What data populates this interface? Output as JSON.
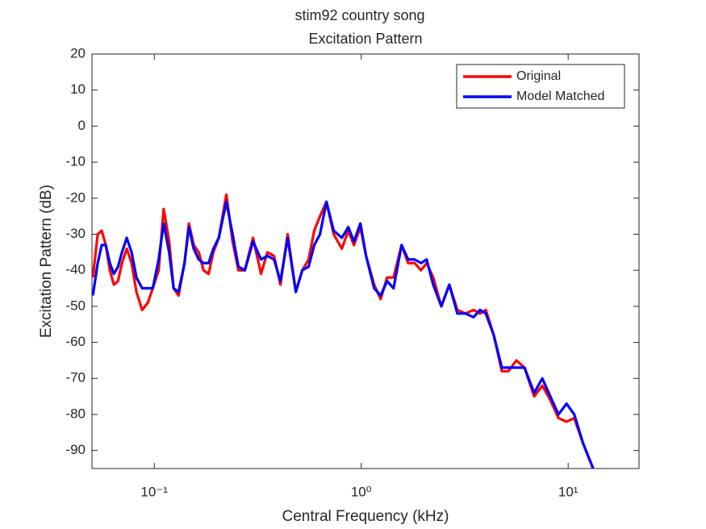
{
  "chart_data": {
    "type": "line",
    "title": "stim92 country song",
    "subtitle": "Excitation Pattern",
    "x_label": "Central Frequency (kHz)",
    "y_label": "Excitation Pattern (dB)",
    "log_x": true,
    "xlim": [
      0.05,
      22
    ],
    "ylim": [
      -95,
      20
    ],
    "xticks": [
      {
        "value": 0.1,
        "label": "10⁻¹"
      },
      {
        "value": 1,
        "label": "10⁰"
      },
      {
        "value": 10,
        "label": "10¹"
      }
    ],
    "yticks": [
      20,
      10,
      0,
      -10,
      -20,
      -30,
      -40,
      -50,
      -60,
      -70,
      -80,
      -90
    ],
    "legend": "upper right",
    "x": [
      0.0505,
      0.0533,
      0.0557,
      0.0583,
      0.061,
      0.0638,
      0.0668,
      0.0698,
      0.0736,
      0.0777,
      0.082,
      0.0874,
      0.0931,
      0.0983,
      0.105,
      0.111,
      0.118,
      0.124,
      0.131,
      0.14,
      0.147,
      0.155,
      0.164,
      0.173,
      0.183,
      0.193,
      0.205,
      0.223,
      0.239,
      0.255,
      0.274,
      0.3,
      0.328,
      0.352,
      0.379,
      0.407,
      0.441,
      0.483,
      0.519,
      0.557,
      0.593,
      0.632,
      0.679,
      0.736,
      0.806,
      0.866,
      0.922,
      0.991,
      1.055,
      1.155,
      1.241,
      1.334,
      1.433,
      1.567,
      1.685,
      1.811,
      1.945,
      2.071,
      2.228,
      2.438,
      2.665,
      2.915,
      3.19,
      3.49,
      3.75,
      4.0,
      4.37,
      4.78,
      5.14,
      5.62,
      6.15,
      6.85,
      7.5,
      8.2,
      8.98,
      9.82,
      10.7,
      11.8,
      13.2
    ],
    "series": [
      {
        "name": "Original",
        "color": "#ff0000",
        "values": [
          -42,
          -30,
          -29,
          -33,
          -40,
          -44,
          -43,
          -38,
          -34,
          -38,
          -46,
          -51,
          -49,
          -45,
          -40,
          -23,
          -32,
          -45,
          -47,
          -38,
          -27,
          -33,
          -35,
          -40,
          -41,
          -35,
          -31,
          -19,
          -32,
          -40,
          -40,
          -31,
          -41,
          -35,
          -36,
          -44,
          -30,
          -46,
          -40,
          -37,
          -29,
          -25,
          -21,
          -30,
          -34,
          -29,
          -33,
          -28,
          -36,
          -44,
          -48,
          -42,
          -42,
          -33,
          -38,
          -38,
          -40,
          -38,
          -42,
          -50,
          -44,
          -51,
          -52,
          -51,
          -52,
          -51,
          -58,
          -68,
          -68,
          -65,
          -67,
          -75,
          -72,
          -76,
          -81,
          -82,
          -81,
          -88,
          -95
        ]
      },
      {
        "name": "Model Matched",
        "color": "#0000ff",
        "values": [
          -47,
          -38,
          -33,
          -33,
          -38,
          -41,
          -39,
          -35,
          -31,
          -35,
          -42,
          -45,
          -45,
          -45,
          -37,
          -27,
          -35,
          -45,
          -46,
          -38,
          -28,
          -34,
          -37,
          -38,
          -38,
          -34,
          -31,
          -21,
          -30,
          -39,
          -40,
          -32,
          -37,
          -36,
          -37,
          -43,
          -31,
          -46,
          -40,
          -39,
          -33,
          -30,
          -21,
          -29,
          -31,
          -28,
          -32,
          -27,
          -36,
          -45,
          -47,
          -43,
          -45,
          -33,
          -37,
          -37,
          -38,
          -37,
          -44,
          -50,
          -44,
          -52,
          -52,
          -53,
          -51,
          -52,
          -58,
          -67,
          -67,
          -67,
          -67,
          -74,
          -70,
          -75,
          -80,
          -77,
          -80,
          -88,
          -95
        ]
      }
    ]
  }
}
